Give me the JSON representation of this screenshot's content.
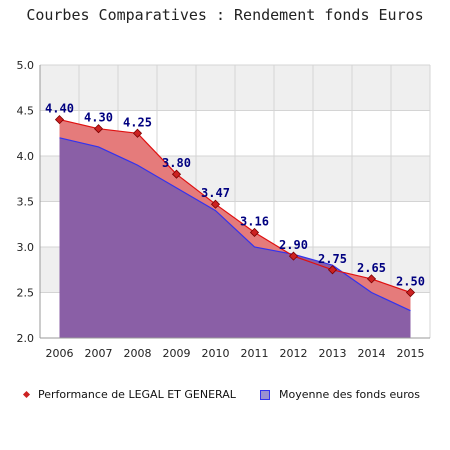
{
  "title": "Courbes Comparatives : Rendement fonds Euros",
  "colors": {
    "perf_line": "#e01010",
    "perf_fill": "#e57b7b",
    "perf_marker": "#cc2222",
    "avg_line": "#3333ee",
    "avg_fill": "#8a5fa6",
    "legend_square": "#9a90d0",
    "band": "#efefef",
    "label": "#000080"
  },
  "chart_data": {
    "type": "area",
    "title": "Courbes Comparatives : Rendement fonds Euros",
    "xlabel": "",
    "ylabel": "",
    "categories": [
      "2006",
      "2007",
      "2008",
      "2009",
      "2010",
      "2011",
      "2012",
      "2013",
      "2014",
      "2015"
    ],
    "ylim": [
      2.0,
      5.0
    ],
    "yticks": [
      "2.0",
      "2.5",
      "3.0",
      "3.5",
      "4.0",
      "4.5",
      "5.0"
    ],
    "grid": true,
    "legend": "bottom",
    "series": [
      {
        "name": "Performance de LEGAL ET GENERAL",
        "values": [
          4.4,
          4.3,
          4.25,
          3.8,
          3.47,
          3.16,
          2.9,
          2.75,
          2.65,
          2.5
        ],
        "labels": [
          "4.40",
          "4.30",
          "4.25",
          "3.80",
          "3.47",
          "3.16",
          "2.90",
          "2.75",
          "2.65",
          "2.50"
        ]
      },
      {
        "name": "Moyenne des fonds euros",
        "values": [
          4.2,
          4.1,
          3.9,
          3.65,
          3.4,
          3.0,
          2.92,
          2.8,
          2.5,
          2.3
        ]
      }
    ]
  }
}
